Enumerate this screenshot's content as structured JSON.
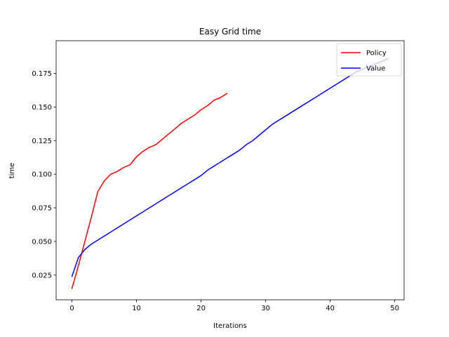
{
  "chart_data": {
    "type": "line",
    "title": "Easy Grid time",
    "xlabel": "Iterations",
    "ylabel": "time",
    "xlim": [
      -2.45,
      51.45
    ],
    "ylim": [
      0.0066,
      0.1993
    ],
    "xticks": [
      0,
      10,
      20,
      30,
      40,
      50
    ],
    "yticks": [
      0.025,
      0.05,
      0.075,
      0.1,
      0.125,
      0.15,
      0.175
    ],
    "ytick_labels": [
      "0.025",
      "0.050",
      "0.075",
      "0.100",
      "0.125",
      "0.150",
      "0.175"
    ],
    "grid": false,
    "legend_position": "top-right",
    "series": [
      {
        "name": "Policy",
        "color": "#ff0000",
        "x": [
          0,
          1,
          2,
          3,
          4,
          5,
          6,
          7,
          8,
          9,
          10,
          11,
          12,
          13,
          14,
          15,
          16,
          17,
          18,
          19,
          20,
          21,
          22,
          23,
          24
        ],
        "y": [
          0.015,
          0.032,
          0.05,
          0.068,
          0.087,
          0.095,
          0.1,
          0.102,
          0.105,
          0.107,
          0.113,
          0.117,
          0.12,
          0.122,
          0.126,
          0.13,
          0.134,
          0.138,
          0.141,
          0.144,
          0.148,
          0.151,
          0.155,
          0.157,
          0.16
        ]
      },
      {
        "name": "Value",
        "color": "#0000ff",
        "x": [
          0,
          1,
          2,
          3,
          4,
          5,
          6,
          7,
          8,
          9,
          10,
          11,
          12,
          13,
          14,
          15,
          16,
          17,
          18,
          19,
          20,
          21,
          22,
          23,
          24,
          25,
          26,
          27,
          28,
          29,
          30,
          31,
          32,
          33,
          34,
          35,
          36,
          37,
          38,
          39,
          40,
          41,
          42,
          43,
          44,
          45,
          46,
          47,
          48,
          49
        ],
        "y": [
          0.024,
          0.038,
          0.044,
          0.048,
          0.051,
          0.054,
          0.057,
          0.06,
          0.063,
          0.066,
          0.069,
          0.072,
          0.075,
          0.078,
          0.081,
          0.084,
          0.087,
          0.09,
          0.093,
          0.096,
          0.099,
          0.103,
          0.106,
          0.109,
          0.112,
          0.115,
          0.118,
          0.122,
          0.125,
          0.129,
          0.133,
          0.137,
          0.14,
          0.143,
          0.146,
          0.149,
          0.152,
          0.155,
          0.158,
          0.161,
          0.164,
          0.167,
          0.17,
          0.173,
          0.176,
          0.178,
          0.18,
          0.182,
          0.184,
          0.186
        ]
      }
    ]
  }
}
